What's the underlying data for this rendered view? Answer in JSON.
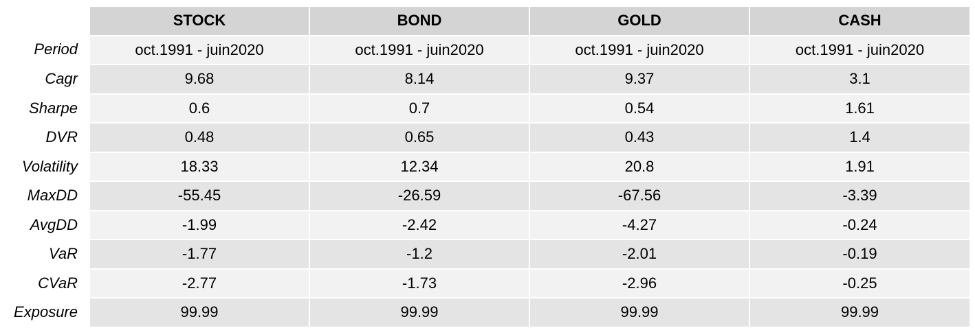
{
  "columns": [
    "STOCK",
    "BOND",
    "GOLD",
    "CASH"
  ],
  "rows": [
    {
      "label": "Period",
      "values": [
        "oct.1991 - juin2020",
        "oct.1991 - juin2020",
        "oct.1991 - juin2020",
        "oct.1991 - juin2020"
      ]
    },
    {
      "label": "Cagr",
      "values": [
        "9.68",
        "8.14",
        "9.37",
        "3.1"
      ]
    },
    {
      "label": "Sharpe",
      "values": [
        "0.6",
        "0.7",
        "0.54",
        "1.61"
      ]
    },
    {
      "label": "DVR",
      "values": [
        "0.48",
        "0.65",
        "0.43",
        "1.4"
      ]
    },
    {
      "label": "Volatility",
      "values": [
        "18.33",
        "12.34",
        "20.8",
        "1.91"
      ]
    },
    {
      "label": "MaxDD",
      "values": [
        "-55.45",
        "-26.59",
        "-67.56",
        "-3.39"
      ]
    },
    {
      "label": "AvgDD",
      "values": [
        "-1.99",
        "-2.42",
        "-4.27",
        "-0.24"
      ]
    },
    {
      "label": "VaR",
      "values": [
        "-1.77",
        "-1.2",
        "-2.01",
        "-0.19"
      ]
    },
    {
      "label": "CVaR",
      "values": [
        "-2.77",
        "-1.73",
        "-2.96",
        "-0.25"
      ]
    },
    {
      "label": "Exposure",
      "values": [
        "99.99",
        "99.99",
        "99.99",
        "99.99"
      ]
    }
  ],
  "colors": {
    "header_bg": "#d4d4d4",
    "row_light": "#f2f2f2",
    "row_dark": "#e4e4e4"
  }
}
